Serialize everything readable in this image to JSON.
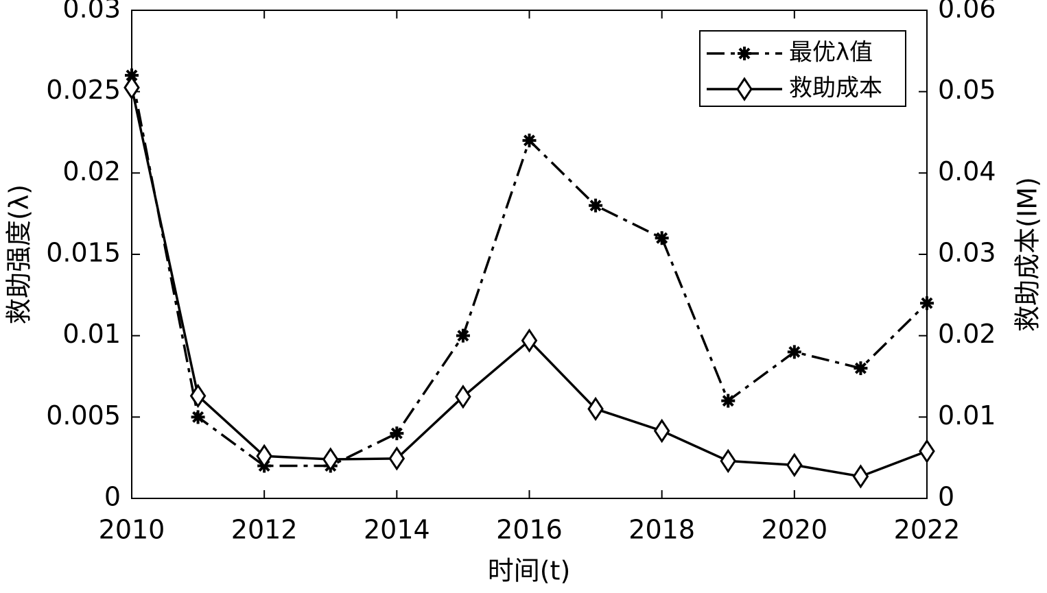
{
  "chart_data": {
    "type": "line",
    "x_label": "时间(t)",
    "y_label": "救助强度(λ)",
    "y2_label": "救助成本(IM)",
    "x": [
      2010,
      2011,
      2012,
      2013,
      2014,
      2015,
      2016,
      2017,
      2018,
      2019,
      2020,
      2021,
      2022
    ],
    "xlim": [
      2010,
      2022
    ],
    "xticks": [
      2010,
      2012,
      2014,
      2016,
      2018,
      2020,
      2022
    ],
    "ylim": [
      0,
      0.03
    ],
    "yticks": [
      0,
      0.005,
      0.01,
      0.015,
      0.02,
      0.025,
      0.03
    ],
    "y2lim": [
      0,
      0.06
    ],
    "y2ticks": [
      0,
      0.01,
      0.02,
      0.03,
      0.04,
      0.05,
      0.06
    ],
    "legend": "upper right",
    "series": [
      {
        "name": "最优λ值",
        "color": "#000000",
        "linestyle": "dashdot",
        "marker": "asterisk",
        "values": [
          0.026,
          0.005,
          0.002,
          0.002,
          0.004,
          0.01,
          0.022,
          0.018,
          0.016,
          0.006,
          0.009,
          0.008,
          0.012
        ]
      },
      {
        "name": "救助成本",
        "color": "#000000",
        "linestyle": "solid",
        "marker": "diamond",
        "axis": "y2",
        "values": [
          0.0505,
          0.0126,
          0.0052,
          0.0048,
          0.0049,
          0.0125,
          0.0194,
          0.011,
          0.0083,
          0.0046,
          0.0041,
          0.0027,
          0.0058
        ]
      }
    ]
  }
}
